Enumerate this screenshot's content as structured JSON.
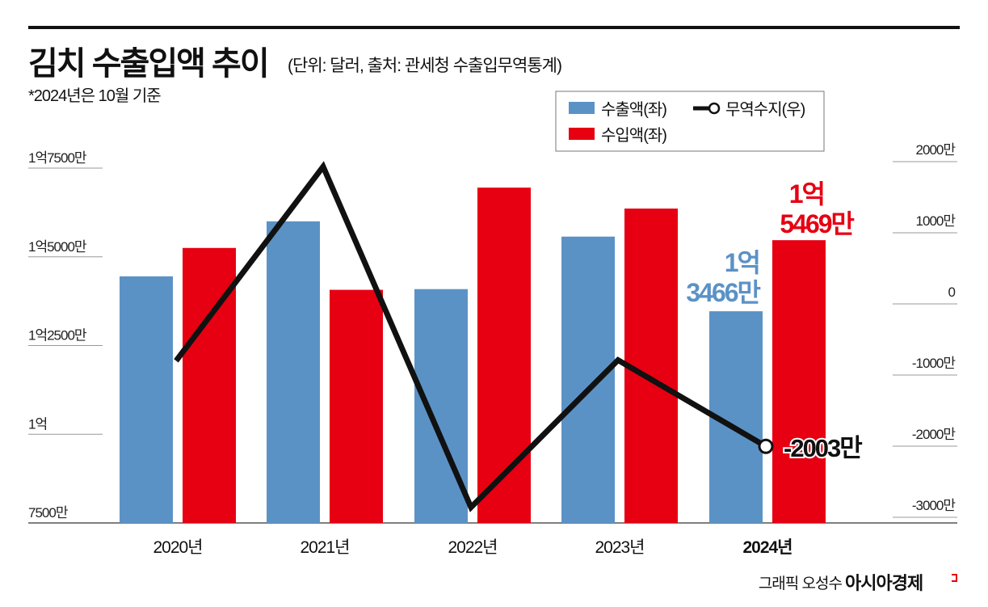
{
  "title": "김치 수출입액 추이",
  "subtitle": "(단위: 달러, 출처: 관세청 수출입무역통계)",
  "note": "*2024년은 10월 기준",
  "credit": "그래픽 오성수",
  "logo_text": "아시아경제",
  "colors": {
    "export": "#5b92c6",
    "import": "#e60012",
    "balance": "#111111"
  },
  "chart_data": {
    "type": "bar+line",
    "categories": [
      "2020년",
      "2021년",
      "2022년",
      "2023년",
      "2024년"
    ],
    "unit": "만 달러",
    "series": [
      {
        "name": "수출액(좌)",
        "type": "bar",
        "axis": "left",
        "values": [
          14450,
          16000,
          14090,
          15570,
          13466
        ]
      },
      {
        "name": "수입액(좌)",
        "type": "bar",
        "axis": "left",
        "values": [
          15250,
          14070,
          16950,
          16360,
          15469
        ]
      },
      {
        "name": "무역수지(우)",
        "type": "line",
        "axis": "right",
        "values": [
          -800,
          1930,
          -2860,
          -790,
          -2003
        ]
      }
    ],
    "left_axis": {
      "ylim": [
        7500,
        17500
      ],
      "ticks": [
        7500,
        10000,
        12500,
        15000,
        17500
      ],
      "tick_labels": [
        "7500만",
        "1억",
        "1억2500만",
        "1억5000만",
        "1억7500만"
      ]
    },
    "right_axis": {
      "ylim": [
        -3000,
        2000
      ],
      "ticks": [
        -3000,
        -2000,
        -1000,
        0,
        1000,
        2000
      ],
      "tick_labels": [
        "-3000만",
        "-2000만",
        "-1000만",
        "0",
        "1000만",
        "2000만"
      ]
    },
    "annotations": {
      "export_2024": [
        "1억",
        "3466만"
      ],
      "import_2024": [
        "1억",
        "5469만"
      ],
      "balance_2024": "-2003만"
    },
    "legend": {
      "placement": "top-right",
      "entries": [
        "수출액(좌)",
        "수입액(좌)",
        "무역수지(우)"
      ]
    },
    "grid": false
  }
}
